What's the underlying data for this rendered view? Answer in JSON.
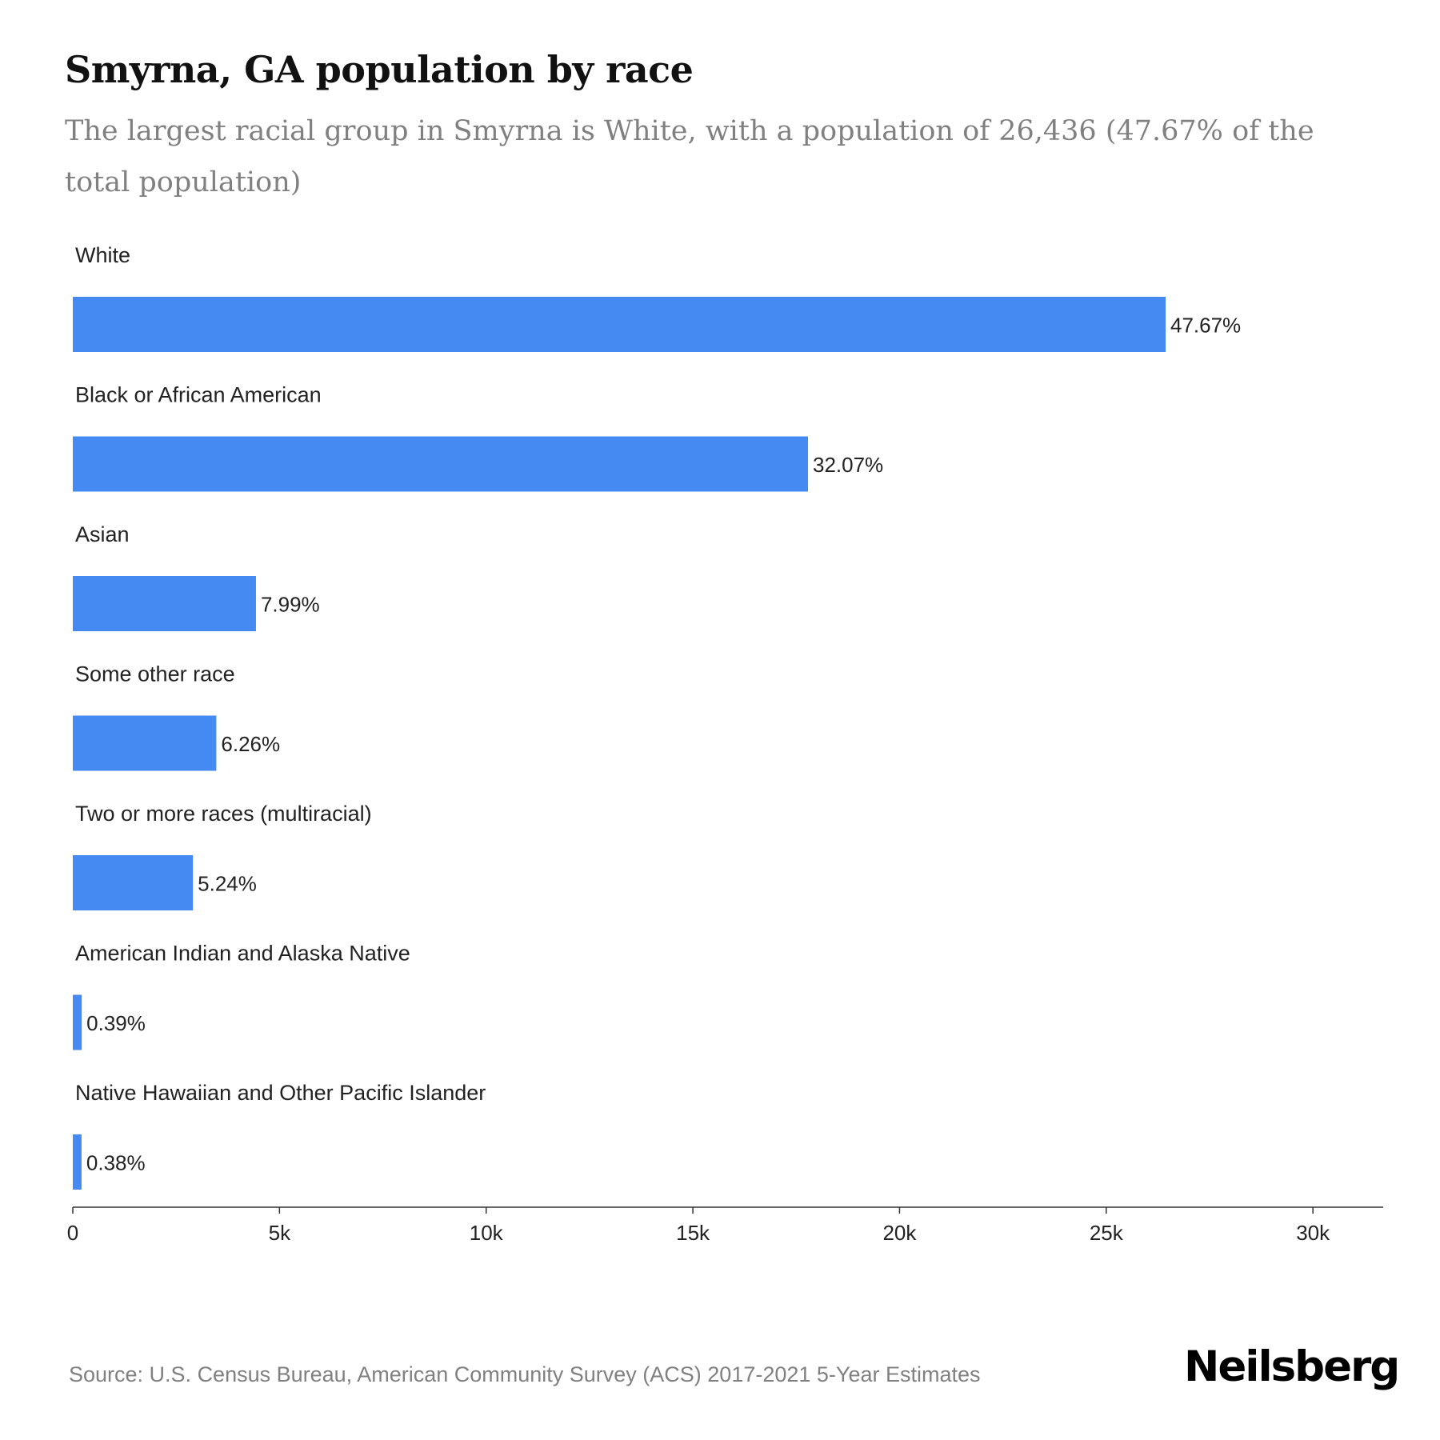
{
  "header": {
    "title": "Smyrna, GA population by race",
    "subtitle": "The largest racial group in Smyrna is White, with a population of 26,436 (47.67% of the total population)"
  },
  "footer": {
    "source": "Source: U.S. Census Bureau, American Community Survey (ACS) 2017-2021 5-Year Estimates",
    "brand": "Neilsberg"
  },
  "colors": {
    "bar": "#4589F3",
    "text": "#222222",
    "axis": "#333333"
  },
  "chart_data": {
    "type": "bar",
    "orientation": "horizontal",
    "title": "Smyrna, GA population by race",
    "xlabel": "",
    "ylabel": "",
    "xlim": [
      0,
      31700
    ],
    "grid": false,
    "ticks": [
      {
        "value": 0,
        "label": "0"
      },
      {
        "value": 5000,
        "label": "5k"
      },
      {
        "value": 10000,
        "label": "10k"
      },
      {
        "value": 15000,
        "label": "15k"
      },
      {
        "value": 20000,
        "label": "20k"
      },
      {
        "value": 25000,
        "label": "25k"
      },
      {
        "value": 30000,
        "label": "30k"
      }
    ],
    "categories": [
      "White",
      "Black or African American",
      "Asian",
      "Some other race",
      "Two or more races (multiracial)",
      "American Indian and Alaska Native",
      "Native Hawaiian and Other Pacific Islander"
    ],
    "values": [
      26436,
      17785,
      4431,
      3472,
      2906,
      216,
      211
    ],
    "labels": [
      "47.67%",
      "32.07%",
      "7.99%",
      "6.26%",
      "5.24%",
      "0.39%",
      "0.38%"
    ]
  }
}
